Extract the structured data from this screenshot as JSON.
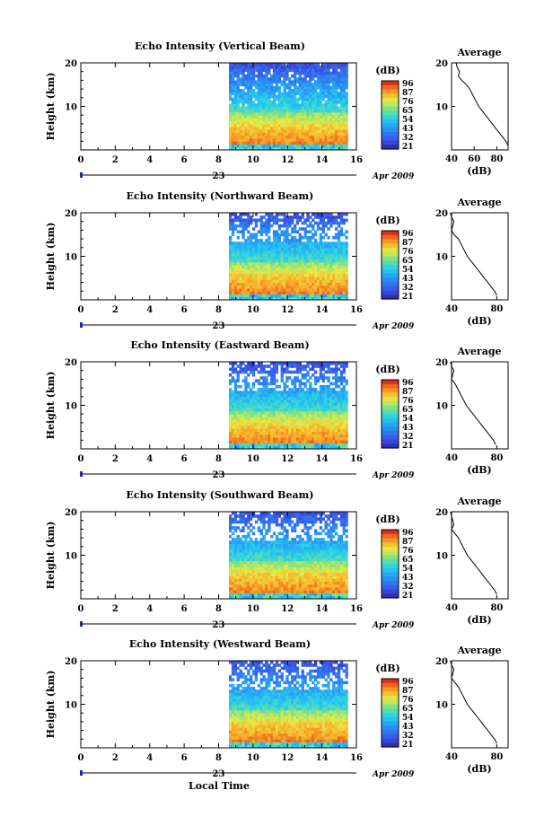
{
  "chart_data": {
    "type": "heatmap",
    "time_axis": {
      "ticks": [
        0,
        2,
        4,
        6,
        8,
        10,
        12,
        14,
        16
      ],
      "range": [
        0,
        16
      ],
      "date_marker": "23",
      "date_label": "Apr 2009",
      "xlabel": "Local Time"
    },
    "height_axis": {
      "label": "Height (km)",
      "ticks": [
        10,
        20
      ],
      "range": [
        0,
        20
      ]
    },
    "colorbar": {
      "unit": "(dB)",
      "tick_labels": [
        "96",
        "87",
        "76",
        "65",
        "54",
        "43",
        "32",
        "21"
      ],
      "range": [
        21,
        96
      ]
    },
    "average": {
      "title": "Average",
      "xlabel": "(dB)",
      "xticks": [
        "40",
        "60",
        "80"
      ],
      "xlim": [
        40,
        90
      ]
    },
    "data_time_range": [
      8.6,
      15.5
    ],
    "panels": [
      {
        "title": "Echo Intensity (Vertical Beam)",
        "avg_profile_km": [
          1,
          2,
          3,
          4,
          5,
          6,
          7,
          8,
          9,
          10,
          11,
          12,
          13,
          14,
          15,
          16,
          17,
          18,
          19,
          20
        ],
        "avg_profile_db": [
          90,
          88,
          85,
          82,
          79,
          76,
          73,
          70,
          67,
          64,
          62,
          60,
          58,
          56,
          53,
          49,
          46,
          47,
          45,
          44
        ]
      },
      {
        "title": "Echo Intensity (Northward Beam)",
        "avg_profile_km": [
          1,
          2,
          3,
          4,
          5,
          6,
          7,
          8,
          9,
          10,
          11,
          12,
          13,
          14,
          15,
          16,
          17,
          18,
          19,
          20
        ],
        "avg_profile_db": [
          80,
          78,
          75,
          72,
          69,
          66,
          63,
          60,
          57,
          54,
          52,
          50,
          48,
          46,
          42,
          40,
          41,
          42,
          40,
          39
        ]
      },
      {
        "title": "Echo Intensity (Eastward Beam)",
        "avg_profile_km": [
          1,
          2,
          3,
          4,
          5,
          6,
          7,
          8,
          9,
          10,
          11,
          12,
          13,
          14,
          15,
          16,
          17,
          18,
          19,
          20
        ],
        "avg_profile_db": [
          79,
          77,
          74,
          71,
          68,
          65,
          62,
          59,
          56,
          53,
          51,
          49,
          47,
          45,
          43,
          40,
          41,
          42,
          40,
          39
        ]
      },
      {
        "title": "Echo Intensity (Southward Beam)",
        "avg_profile_km": [
          1,
          2,
          3,
          4,
          5,
          6,
          7,
          8,
          9,
          10,
          11,
          12,
          13,
          14,
          15,
          16,
          17,
          18,
          19,
          20
        ],
        "avg_profile_db": [
          80,
          78,
          75,
          72,
          69,
          66,
          63,
          60,
          57,
          54,
          52,
          50,
          48,
          46,
          43,
          40,
          42,
          41,
          40,
          39
        ]
      },
      {
        "title": "Echo Intensity (Westward Beam)",
        "avg_profile_km": [
          1,
          2,
          3,
          4,
          5,
          6,
          7,
          8,
          9,
          10,
          11,
          12,
          13,
          14,
          15,
          16,
          17,
          18,
          19,
          20
        ],
        "avg_profile_db": [
          80,
          78,
          75,
          72,
          69,
          66,
          63,
          60,
          57,
          54,
          52,
          50,
          48,
          46,
          43,
          40,
          41,
          42,
          40,
          39
        ]
      }
    ]
  }
}
